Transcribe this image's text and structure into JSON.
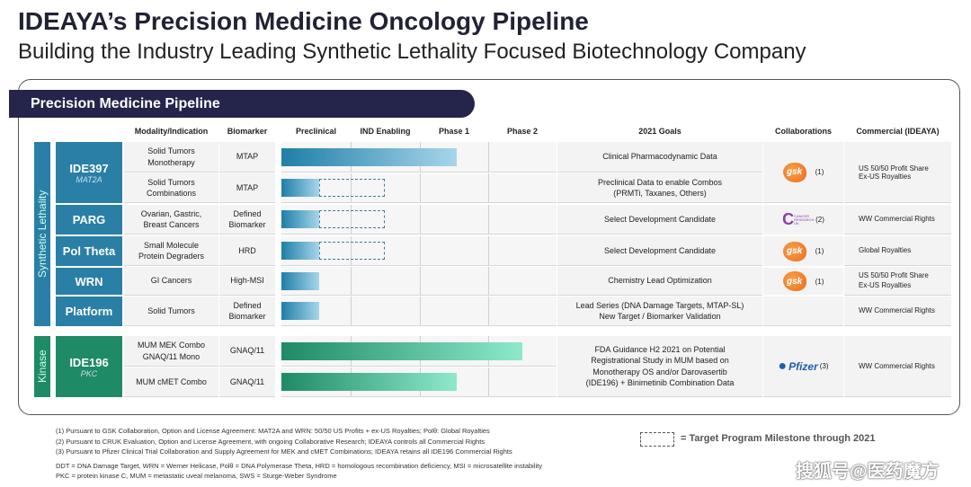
{
  "title": "IDEAYA’s Precision Medicine Oncology Pipeline",
  "subtitle": "Building the Industry Leading Synthetic Lethality Focused Biotechnology Company",
  "banner": "Precision Medicine Pipeline",
  "headers": {
    "modality": "Modality/Indication",
    "biomarker": "Biomarker",
    "preclinical": "Preclinical",
    "ind": "IND Enabling",
    "phase1": "Phase 1",
    "phase2": "Phase 2",
    "goals": "2021 Goals",
    "collab": "Collaborations",
    "commercial": "Commercial (IDEAYA)"
  },
  "groups": {
    "sl": "Synthetic Lethality",
    "kinase": "Kinase"
  },
  "programs": [
    {
      "name": "IDE397",
      "target": "MAT2A"
    },
    {
      "name": "PARG"
    },
    {
      "name": "Pol Theta"
    },
    {
      "name": "WRN"
    },
    {
      "name": "Platform"
    },
    {
      "name": "IDE196",
      "target": "PKC"
    }
  ],
  "rows": [
    {
      "modality": "Solid Tumors\nMonotherapy",
      "biomarker": "MTAP",
      "goal": "Clinical Pharmacodynamic Data",
      "progress_stages": 2.55,
      "target_stages": null
    },
    {
      "modality": "Solid Tumors\nCombinations",
      "biomarker": "MTAP",
      "goal": "Preclinical Data to enable Combos\n(PRMTi, Taxanes, Others)",
      "progress_stages": 0.55,
      "target_stages": 1.5
    },
    {
      "modality": "Ovarian, Gastric,\nBreast Cancers",
      "biomarker": "Defined\nBiomarker",
      "goal": "Select Development Candidate",
      "progress_stages": 0.55,
      "target_stages": 1.5
    },
    {
      "modality": "Small Molecule\nProtein Degraders",
      "biomarker": "HRD",
      "goal": "Select Development Candidate",
      "progress_stages": 0.55,
      "target_stages": 1.5
    },
    {
      "modality": "GI Cancers",
      "biomarker": "High-MSI",
      "goal": "Chemistry Lead Optimization",
      "progress_stages": 0.55,
      "target_stages": null
    },
    {
      "modality": "Solid Tumors",
      "biomarker": "Defined\nBiomarker",
      "goal": "Lead Series (DNA Damage Targets, MTAP-SL)\nNew Target / Biomarker Validation",
      "progress_stages": 0.55,
      "target_stages": null
    },
    {
      "modality": "MUM MEK Combo\nGNAQ/11 Mono",
      "biomarker": "GNAQ/11",
      "progress_stages": 3.5,
      "target_stages": null
    },
    {
      "modality": "MUM cMET Combo",
      "biomarker": "GNAQ/11",
      "progress_stages": 2.55,
      "target_stages": null
    }
  ],
  "ide196_goal": "FDA Guidance H2 2021 on Potential Registrational Study in MUM based on Monotherapy OS and/or Darovasertib (IDE196) + Binimetinib Combination Data",
  "collabs": {
    "gsk_logo": "gsk",
    "gsk_note": "(1)",
    "cruk_logo": "CANCER RESEARCH UK",
    "cruk_note": "(2)",
    "pfizer_logo": "Pfizer",
    "pfizer_note": "(3)"
  },
  "commercial": {
    "ide397": "US 50/50 Profit Share\nEx-US Royalties",
    "parg": "WW Commercial Rights",
    "poltheta": "Global Royalties",
    "wrn": "US 50/50 Profit Share\nEx-US Royalties",
    "platform": "WW Commercial Rights",
    "ide196": "WW Commercial Rights"
  },
  "legend": "= Target Program Milestone through 2021",
  "footnotes": [
    "(1)   Pursuant to GSK Collaboration, Option and License Agreement: MAT2A and WRN: 50/50 US Profits + ex-US Royalties; Polθ: Global Royalties",
    "(2)   Pursuant to CRUK Evaluation, Option and License Agreement, with ongoing Collaborative Research; IDEAYA controls all Commercial Rights",
    "(3)   Pursuant to Pfizer Clinical Trial Collaboration and Supply Agreement for MEK and cMET Combinations; IDEAYA retains all IDE196 Commercial Rights"
  ],
  "abbrev": [
    "DDT = DNA Damage Target, WRN = Werner Helicase, Polθ = DNA Polymerase Theta, HRD = homologous recombination deficiency, MSI = microsatellite instability",
    "PKC = protein kinase C, MUM = metastatic uveal melanoma, SWS = Sturge-Weber Syndrome"
  ],
  "watermark": "搜狐号@医药魔方"
}
